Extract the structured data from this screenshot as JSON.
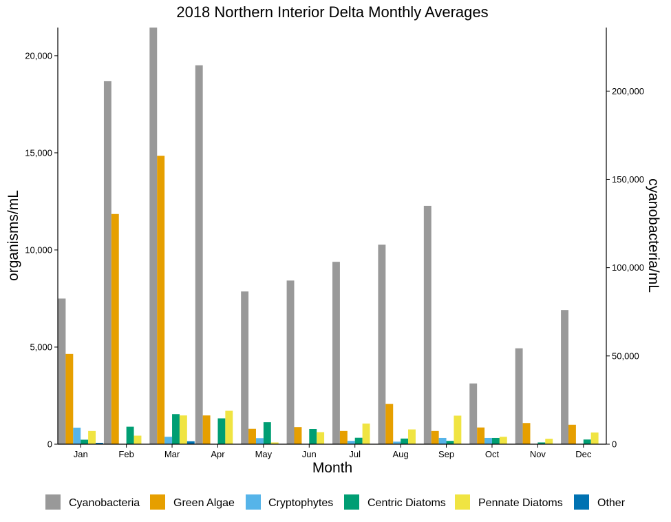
{
  "chart_data": {
    "type": "bar",
    "title": "2018 Northern Interior Delta Monthly Averages",
    "xlabel": "Month",
    "ylabel": "organisms/mL",
    "y2label": "cyanobacteria/mL",
    "categories": [
      "Jan",
      "Feb",
      "Mar",
      "Apr",
      "May",
      "Jun",
      "Jul",
      "Aug",
      "Sep",
      "Oct",
      "Nov",
      "Dec"
    ],
    "ylim": [
      0,
      21450
    ],
    "y_ticks": [
      0,
      5000,
      10000,
      15000,
      20000
    ],
    "y_tick_labels": [
      "0",
      "5,000",
      "10,000",
      "15,000",
      "20,000"
    ],
    "y2lim": [
      0,
      236000
    ],
    "y2_ticks": [
      0,
      50000,
      100000,
      150000,
      200000
    ],
    "y2_tick_labels": [
      "0",
      "50,000",
      "100,000",
      "150,000",
      "200,000"
    ],
    "grid": false,
    "legend_position": "bottom",
    "series": [
      {
        "name": "Cyanobacteria",
        "axis": "right",
        "color": "#999999",
        "values": [
          82500,
          205600,
          236000,
          214600,
          86500,
          92700,
          103300,
          113000,
          135000,
          34400,
          54300,
          76000
        ]
      },
      {
        "name": "Green Algae",
        "axis": "left",
        "color": "#E69F00",
        "values": [
          4650,
          11850,
          14850,
          1480,
          790,
          880,
          680,
          2070,
          680,
          860,
          1090,
          1000
        ]
      },
      {
        "name": "Cryptophytes",
        "axis": "left",
        "color": "#56B4E9",
        "values": [
          850,
          0,
          380,
          0,
          310,
          0,
          170,
          130,
          320,
          320,
          0,
          0
        ]
      },
      {
        "name": "Centric Diatoms",
        "axis": "left",
        "color": "#009E73",
        "values": [
          230,
          900,
          1550,
          1330,
          1130,
          780,
          330,
          290,
          170,
          320,
          90,
          240
        ]
      },
      {
        "name": "Pennate Diatoms",
        "axis": "left",
        "color": "#F0E442",
        "values": [
          680,
          440,
          1480,
          1720,
          90,
          620,
          1060,
          760,
          1470,
          380,
          280,
          600
        ]
      },
      {
        "name": "Other",
        "axis": "left",
        "color": "#0072B2",
        "values": [
          70,
          0,
          150,
          0,
          0,
          0,
          0,
          0,
          0,
          0,
          0,
          0
        ]
      }
    ]
  }
}
